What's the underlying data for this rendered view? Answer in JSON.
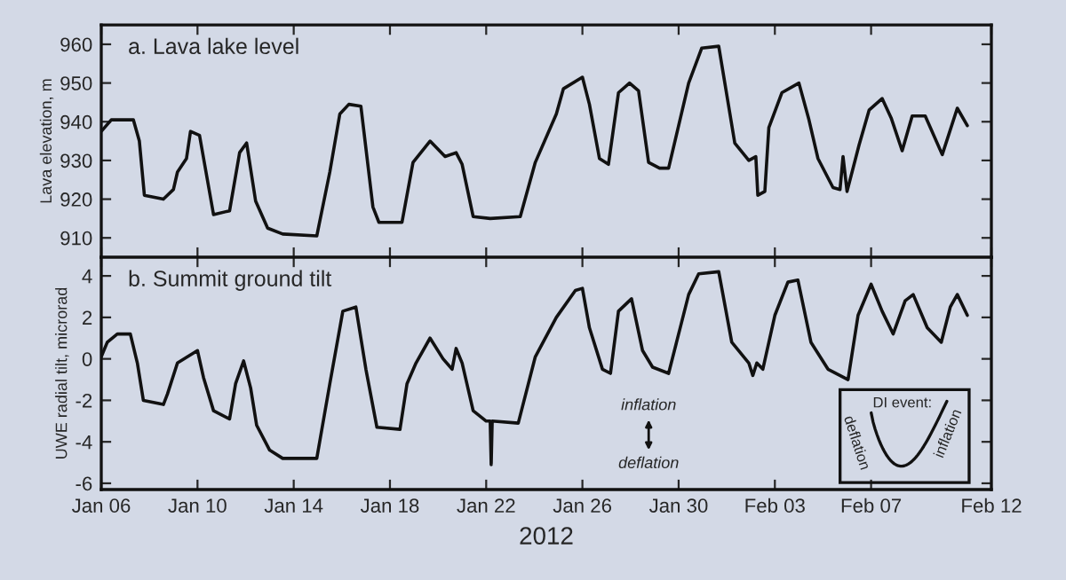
{
  "chart_data": [
    {
      "type": "line",
      "title": "a. Lava lake level",
      "ylabel": "Lava elevation, m",
      "ylim": [
        905,
        965
      ],
      "yticks": [
        910,
        920,
        930,
        940,
        950,
        960
      ],
      "xlim": [
        "2012-01-06",
        "2012-02-12"
      ],
      "xticks": [
        {
          "value": "2012-01-06",
          "label": null
        },
        {
          "value": "2012-01-10",
          "label": null
        },
        {
          "value": "2012-01-14",
          "label": null
        },
        {
          "value": "2012-01-18",
          "label": null
        },
        {
          "value": "2012-01-22",
          "label": null
        },
        {
          "value": "2012-01-26",
          "label": null
        },
        {
          "value": "2012-01-30",
          "label": null
        },
        {
          "value": "2012-02-03",
          "label": null
        },
        {
          "value": "2012-02-07",
          "label": null
        },
        {
          "value": "2012-02-12",
          "label": null
        }
      ],
      "tick_labels": "y",
      "grid": false,
      "line_style": "solid",
      "marker": "none",
      "series": [
        {
          "color": "#111111",
          "x": [
            "2012-01-06T00:00",
            "2012-01-06T10:00",
            "2012-01-07T08:00",
            "2012-01-07T14:00",
            "2012-01-07T19:00",
            "2012-01-08T14:00",
            "2012-01-09T00:00",
            "2012-01-09T04:00",
            "2012-01-09T13:00",
            "2012-01-09T17:00",
            "2012-01-10T02:00",
            "2012-01-10T16:00",
            "2012-01-11T08:00",
            "2012-01-11T18:00",
            "2012-01-12T01:00",
            "2012-01-12T10:00",
            "2012-01-12T22:00",
            "2012-01-13T13:00",
            "2012-01-14T23:00",
            "2012-01-15T12:00",
            "2012-01-15T22:00",
            "2012-01-16T07:00",
            "2012-01-16T19:00",
            "2012-01-17T07:00",
            "2012-01-17T13:00",
            "2012-01-18T12:00",
            "2012-01-18T23:00",
            "2012-01-19T16:00",
            "2012-01-20T07:00",
            "2012-01-20T18:00",
            "2012-01-21T00:00",
            "2012-01-21T11:00",
            "2012-01-22T04:00",
            "2012-01-23T10:00",
            "2012-01-24T01:00",
            "2012-01-24T22:00",
            "2012-01-25T05:00",
            "2012-01-26T00:00",
            "2012-01-26T07:00",
            "2012-01-26T17:00",
            "2012-01-27T02:00",
            "2012-01-27T12:00",
            "2012-01-27T23:00",
            "2012-01-28T08:00",
            "2012-01-28T18:00",
            "2012-01-29T05:00",
            "2012-01-29T14:00",
            "2012-01-30T10:00",
            "2012-01-30T23:00",
            "2012-01-31T16:00",
            "2012-02-01T08:00",
            "2012-02-01T22:00",
            "2012-02-02T05:00",
            "2012-02-02T07:00",
            "2012-02-02T14:00",
            "2012-02-02T18:00",
            "2012-02-03T07:00",
            "2012-02-04T00:00",
            "2012-02-04T10:00",
            "2012-02-04T19:00",
            "2012-02-05T10:00",
            "2012-02-05T17:00",
            "2012-02-05T20:00",
            "2012-02-06T00:00",
            "2012-02-06T12:00",
            "2012-02-06T22:00",
            "2012-02-07T11:00",
            "2012-02-07T20:00",
            "2012-02-08T07:00",
            "2012-02-08T17:00",
            "2012-02-09T06:00",
            "2012-02-09T23:00",
            "2012-02-10T14:00",
            "2012-02-11T00:00"
          ],
          "values": [
            937.5,
            940.5,
            940.5,
            935,
            921,
            920,
            922.5,
            927,
            930.5,
            937.5,
            936.5,
            916,
            917,
            932,
            934.5,
            919.5,
            912.5,
            911,
            910.5,
            927,
            942,
            944.5,
            944,
            918,
            914,
            914,
            929.5,
            935,
            931,
            932,
            929,
            915.5,
            915,
            915.5,
            929.5,
            942,
            948.5,
            951.5,
            944.5,
            930.5,
            929,
            947.5,
            950,
            948,
            929.5,
            928,
            928,
            950,
            959,
            959.5,
            934.5,
            930,
            931,
            921,
            922,
            938.5,
            947.5,
            950,
            940.5,
            930.5,
            923,
            922.5,
            931,
            922,
            934,
            943,
            946,
            941,
            932.5,
            941.5,
            941.5,
            931.5,
            943.5,
            939
          ]
        }
      ]
    },
    {
      "type": "line",
      "title": "b. Summit ground tilt",
      "ylabel": "UWE radial tilt, microrad",
      "xlabel": "2012",
      "ylim": [
        -6.3,
        4.9
      ],
      "yticks": [
        {
          "value": -6,
          "label": "-6"
        },
        {
          "value": -4,
          "label": "-4"
        },
        {
          "value": -2,
          "label": "-2"
        },
        0,
        2,
        4
      ],
      "xlim": [
        "2012-01-06",
        "2012-02-12"
      ],
      "xticks": [
        {
          "value": "2012-01-06",
          "label": "Jan 06"
        },
        {
          "value": "2012-01-10",
          "label": "Jan 10"
        },
        {
          "value": "2012-01-14",
          "label": "Jan 14"
        },
        {
          "value": "2012-01-18",
          "label": "Jan 18"
        },
        {
          "value": "2012-01-22",
          "label": "Jan 22"
        },
        {
          "value": "2012-01-26",
          "label": "Jan 26"
        },
        {
          "value": "2012-01-30",
          "label": "Jan 30"
        },
        {
          "value": "2012-02-03",
          "label": "Feb 03"
        },
        {
          "value": "2012-02-07",
          "label": "Feb 07"
        },
        {
          "value": "2012-02-12",
          "label": "Feb 12"
        }
      ],
      "grid": false,
      "line_style": "solid",
      "marker": "none",
      "annotations": [
        "inflation",
        "deflation",
        "DI event:",
        "deflation",
        "inflation"
      ],
      "series": [
        {
          "color": "#111111",
          "x": [
            "2012-01-06T00:00",
            "2012-01-06T06:00",
            "2012-01-06T16:00",
            "2012-01-07T05:00",
            "2012-01-07T12:00",
            "2012-01-07T18:00",
            "2012-01-08T14:00",
            "2012-01-08T18:00",
            "2012-01-09T04:00",
            "2012-01-10T00:00",
            "2012-01-10T06:00",
            "2012-01-10T16:00",
            "2012-01-11T08:00",
            "2012-01-11T14:00",
            "2012-01-11T22:00",
            "2012-01-12T05:00",
            "2012-01-12T11:00",
            "2012-01-13T00:00",
            "2012-01-13T13:00",
            "2012-01-14T23:00",
            "2012-01-15T12:00",
            "2012-01-16T01:00",
            "2012-01-16T14:00",
            "2012-01-17T00:00",
            "2012-01-17T11:00",
            "2012-01-18T10:00",
            "2012-01-18T17:00",
            "2012-01-19T02:00",
            "2012-01-19T16:00",
            "2012-01-20T05:00",
            "2012-01-20T14:00",
            "2012-01-20T18:00",
            "2012-01-21T00:00",
            "2012-01-21T11:00",
            "2012-01-22T00:00",
            "2012-01-22T04:00",
            "2012-01-22T05:00",
            "2012-01-22T06:00",
            "2012-01-23T08:00",
            "2012-01-24T01:00",
            "2012-01-24T22:00",
            "2012-01-25T17:00",
            "2012-01-26T00:00",
            "2012-01-26T07:00",
            "2012-01-26T20:00",
            "2012-01-27T04:00",
            "2012-01-27T12:00",
            "2012-01-28T01:00",
            "2012-01-28T12:00",
            "2012-01-28T22:00",
            "2012-01-29T14:00",
            "2012-01-30T10:00",
            "2012-01-30T20:00",
            "2012-01-31T16:00",
            "2012-02-01T05:00",
            "2012-02-01T22:00",
            "2012-02-02T02:00",
            "2012-02-02T06:00",
            "2012-02-02T12:00",
            "2012-02-03T00:00",
            "2012-02-03T13:00",
            "2012-02-03T23:00",
            "2012-02-04T12:00",
            "2012-02-05T05:00",
            "2012-02-06T01:00",
            "2012-02-06T11:00",
            "2012-02-07T00:00",
            "2012-02-07T11:00",
            "2012-02-07T22:00",
            "2012-02-08T10:00",
            "2012-02-08T18:00",
            "2012-02-09T08:00",
            "2012-02-09T22:00",
            "2012-02-10T07:00",
            "2012-02-10T14:00",
            "2012-02-11T00:00"
          ],
          "values": [
            0.1,
            0.8,
            1.2,
            1.2,
            -0.2,
            -2.0,
            -2.2,
            -1.7,
            -0.2,
            0.4,
            -0.9,
            -2.5,
            -2.9,
            -1.2,
            -0.1,
            -1.4,
            -3.2,
            -4.4,
            -4.8,
            -4.8,
            -1.2,
            2.3,
            2.5,
            -0.5,
            -3.3,
            -3.4,
            -1.2,
            -0.2,
            1.0,
            0,
            -0.5,
            0.5,
            -0.2,
            -2.5,
            -3.0,
            -3.0,
            -5.1,
            -3.0,
            -3.1,
            0.1,
            2.0,
            3.3,
            3.4,
            1.5,
            -0.5,
            -0.7,
            2.3,
            2.9,
            0.4,
            -0.4,
            -0.7,
            3.1,
            4.1,
            4.2,
            0.8,
            -0.2,
            -0.8,
            -0.2,
            -0.5,
            2.1,
            3.7,
            3.8,
            0.8,
            -0.5,
            -1.0,
            2.1,
            3.6,
            2.3,
            1.2,
            2.8,
            3.1,
            1.5,
            0.8,
            2.5,
            3.1,
            2.1
          ]
        }
      ]
    }
  ]
}
